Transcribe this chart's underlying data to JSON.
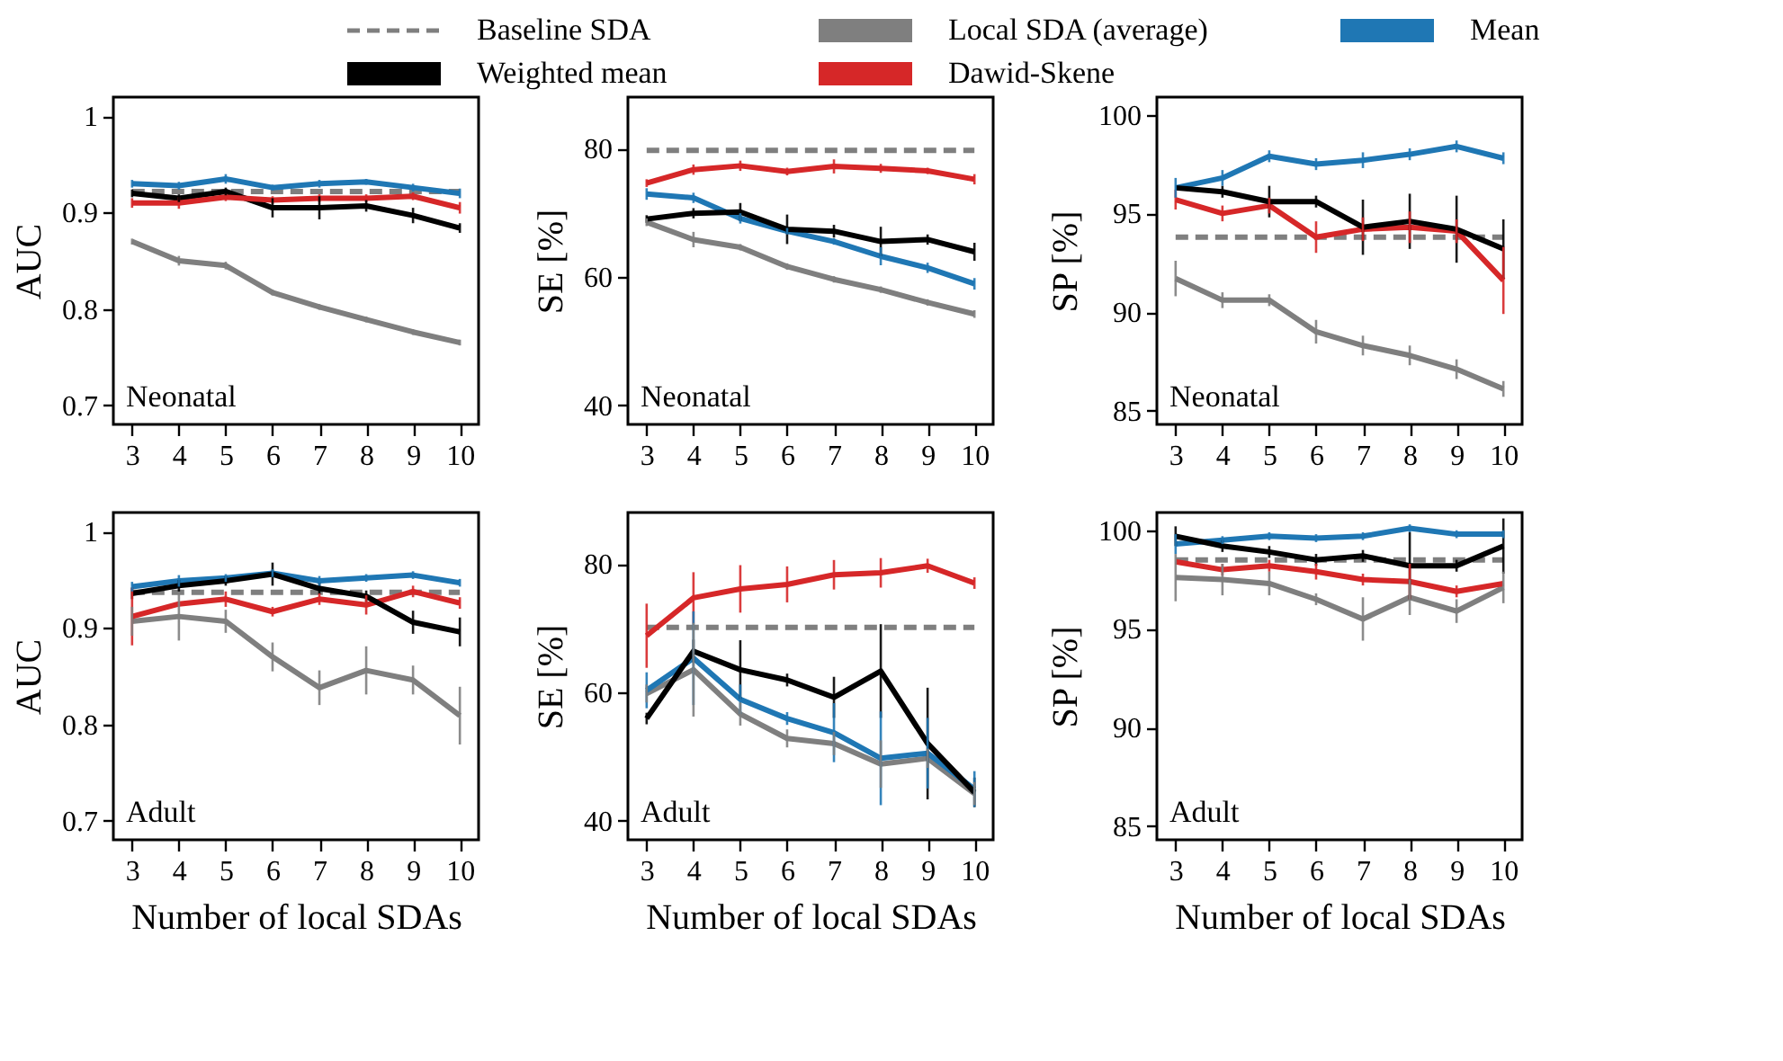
{
  "chart_data": [
    {
      "type": "line",
      "ylabel": "AUC",
      "annotations": [
        "Neonatal"
      ],
      "legend": "top",
      "grid": false,
      "x": [
        3,
        4,
        5,
        6,
        7,
        8,
        9,
        10
      ],
      "xlim": [
        2.6,
        10.4
      ],
      "xticks": [
        3,
        4,
        5,
        6,
        7,
        8,
        9,
        10
      ],
      "ylim": [
        0.68,
        1.02
      ],
      "yticks": [
        0.7,
        0.8,
        0.9,
        1
      ],
      "series": [
        {
          "name": "Baseline SDA",
          "color": "#7f7f7f",
          "line_style": "dashed",
          "values": [
            0.922,
            0.922,
            0.922,
            0.922,
            0.922,
            0.922,
            0.922,
            0.922
          ]
        },
        {
          "name": "Local SDA (average)",
          "color": "#7f7f7f",
          "values": [
            0.87,
            0.85,
            0.845,
            0.817,
            0.802,
            0.789,
            0.776,
            0.765
          ],
          "errors": [
            0.003,
            0.005,
            0.004,
            0.003,
            0.003,
            0.003,
            0.003,
            0.003
          ]
        },
        {
          "name": "Mean",
          "color": "#1f77b4",
          "values": [
            0.93,
            0.928,
            0.935,
            0.926,
            0.93,
            0.932,
            0.926,
            0.92
          ],
          "errors": [
            0.004,
            0.004,
            0.005,
            0.003,
            0.004,
            0.003,
            0.004,
            0.005
          ]
        },
        {
          "name": "Weighted mean",
          "color": "#000000",
          "values": [
            0.92,
            0.915,
            0.922,
            0.905,
            0.905,
            0.907,
            0.897,
            0.884
          ],
          "errors": [
            0.004,
            0.004,
            0.004,
            0.01,
            0.012,
            0.006,
            0.008,
            0.005
          ]
        },
        {
          "name": "Dawid-Skene",
          "color": "#d62728",
          "values": [
            0.91,
            0.91,
            0.916,
            0.913,
            0.915,
            0.915,
            0.917,
            0.905
          ],
          "errors": [
            0.005,
            0.006,
            0.004,
            0.004,
            0.004,
            0.004,
            0.004,
            0.006
          ]
        }
      ]
    },
    {
      "type": "line",
      "ylabel": "SE [%]",
      "annotations": [
        "Neonatal"
      ],
      "grid": false,
      "x": [
        3,
        4,
        5,
        6,
        7,
        8,
        9,
        10
      ],
      "xlim": [
        2.6,
        10.4
      ],
      "xticks": [
        3,
        4,
        5,
        6,
        7,
        8,
        9,
        10
      ],
      "ylim": [
        37,
        88
      ],
      "yticks": [
        40,
        60,
        80
      ],
      "series": [
        {
          "color": "#7f7f7f",
          "line_style": "dashed",
          "values": [
            79.7,
            79.7,
            79.7,
            79.7,
            79.7,
            79.7,
            79.7,
            79.7
          ]
        },
        {
          "color": "#7f7f7f",
          "values": [
            68.5,
            65.8,
            64.6,
            61.6,
            59.6,
            58,
            56,
            54.2
          ],
          "errors": [
            0.6,
            1.2,
            0.5,
            0.5,
            0.5,
            0.5,
            0.5,
            0.6
          ]
        },
        {
          "color": "#1f77b4",
          "values": [
            72.9,
            72.3,
            69.1,
            67.1,
            65.5,
            63.2,
            61.4,
            58.9
          ],
          "errors": [
            0.9,
            0.8,
            0.8,
            0.5,
            0.5,
            1.4,
            0.8,
            0.9
          ]
        },
        {
          "color": "#d62728",
          "values": [
            74.6,
            76.7,
            77.3,
            76.4,
            77.2,
            76.9,
            76.5,
            75.2
          ],
          "errors": [
            0.6,
            0.8,
            0.8,
            0.6,
            1.1,
            0.7,
            0.5,
            0.8
          ]
        },
        {
          "color": "#000000",
          "values": [
            69,
            69.9,
            70.1,
            67.4,
            67.1,
            65.5,
            65.8,
            63.9
          ],
          "errors": [
            0.6,
            0.8,
            1.4,
            2.3,
            1,
            2.3,
            0.8,
            1.4
          ]
        }
      ]
    },
    {
      "type": "line",
      "ylabel": "SP [%]",
      "annotations": [
        "Neonatal"
      ],
      "grid": false,
      "x": [
        3,
        4,
        5,
        6,
        7,
        8,
        9,
        10
      ],
      "xlim": [
        2.6,
        10.4
      ],
      "xticks": [
        3,
        4,
        5,
        6,
        7,
        8,
        9,
        10
      ],
      "ylim": [
        84.3,
        100.9
      ],
      "yticks": [
        85,
        90,
        95,
        100
      ],
      "series": [
        {
          "color": "#7f7f7f",
          "line_style": "dashed",
          "values": [
            93.8,
            93.8,
            93.8,
            93.8,
            93.8,
            93.8,
            93.8,
            93.8
          ]
        },
        {
          "color": "#7f7f7f",
          "values": [
            91.7,
            90.6,
            90.6,
            89,
            88.3,
            87.8,
            87.1,
            86.1
          ],
          "errors": [
            0.9,
            0.4,
            0.3,
            0.6,
            0.5,
            0.5,
            0.5,
            0.4
          ]
        },
        {
          "color": "#1f77b4",
          "values": [
            96.3,
            96.8,
            97.9,
            97.5,
            97.7,
            98,
            98.4,
            97.8
          ],
          "errors": [
            0.5,
            0.4,
            0.3,
            0.3,
            0.4,
            0.3,
            0.3,
            0.3
          ]
        },
        {
          "color": "#d62728",
          "values": [
            95.7,
            95,
            95.4,
            93.8,
            94.2,
            94.3,
            94.1,
            91.6
          ],
          "errors": [
            0.5,
            0.4,
            0.4,
            0.8,
            0.6,
            0.8,
            0.6,
            1.7
          ]
        },
        {
          "color": "#000000",
          "values": [
            96.3,
            96.1,
            95.6,
            95.6,
            94.3,
            94.6,
            94.2,
            93.2
          ],
          "errors": [
            null,
            0.3,
            0.8,
            0.3,
            1.4,
            1.4,
            1.7,
            1.5
          ]
        }
      ]
    },
    {
      "type": "line",
      "ylabel": "AUC",
      "xlabel": "Number of local SDAs",
      "annotations": [
        "Adult"
      ],
      "grid": false,
      "x": [
        3,
        4,
        5,
        6,
        7,
        8,
        9,
        10
      ],
      "xlim": [
        2.6,
        10.4
      ],
      "xticks": [
        3,
        4,
        5,
        6,
        7,
        8,
        9,
        10
      ],
      "ylim": [
        0.68,
        1.02
      ],
      "yticks": [
        0.7,
        0.8,
        0.9,
        1
      ],
      "series": [
        {
          "color": "#7f7f7f",
          "line_style": "dashed",
          "values": [
            0.937,
            0.937,
            0.937,
            0.937,
            0.937,
            0.937,
            0.937,
            0.937
          ]
        },
        {
          "color": "#7f7f7f",
          "values": [
            0.907,
            0.912,
            0.907,
            0.87,
            0.838,
            0.856,
            0.846,
            0.809
          ],
          "errors": [
            0.015,
            0.025,
            0.012,
            0.015,
            0.018,
            0.025,
            0.015,
            0.03
          ]
        },
        {
          "color": "#1f77b4",
          "values": [
            0.943,
            0.949,
            0.952,
            0.957,
            0.949,
            0.952,
            0.955,
            0.947
          ],
          "errors": [
            0.005,
            0.006,
            0.004,
            0.004,
            0.005,
            0.004,
            0.004,
            0.004
          ]
        },
        {
          "color": "#d62728",
          "values": [
            0.912,
            0.925,
            0.93,
            0.917,
            0.93,
            0.924,
            0.938,
            0.926
          ],
          "errors": [
            0.03,
            null,
            0.008,
            0.005,
            0.006,
            0.01,
            0.006,
            0.006
          ]
        },
        {
          "color": "#000000",
          "values": [
            0.936,
            0.944,
            0.949,
            0.956,
            0.941,
            0.933,
            0.906,
            0.896
          ],
          "errors": [
            0.006,
            0.006,
            0.005,
            0.012,
            0.006,
            0.006,
            0.012,
            0.015
          ]
        }
      ]
    },
    {
      "type": "line",
      "ylabel": "SE [%]",
      "xlabel": "Number of local SDAs",
      "annotations": [
        "Adult"
      ],
      "grid": false,
      "x": [
        3,
        4,
        5,
        6,
        7,
        8,
        9,
        10
      ],
      "xlim": [
        2.6,
        10.4
      ],
      "xticks": [
        3,
        4,
        5,
        6,
        7,
        8,
        9,
        10
      ],
      "ylim": [
        37,
        88
      ],
      "yticks": [
        40,
        60,
        80
      ],
      "series": [
        {
          "color": "#7f7f7f",
          "line_style": "dashed",
          "values": [
            70.1,
            70.1,
            70.1,
            70.1,
            70.1,
            70.1,
            70.1,
            70.1
          ]
        },
        {
          "color": "#7f7f7f",
          "values": [
            59.8,
            63.5,
            56.6,
            52.8,
            52,
            48.8,
            49.7,
            44.2
          ],
          "errors": [
            1.4,
            7.3,
            1.8,
            1.4,
            1.8,
            3.7,
            1.5,
            1.8
          ]
        },
        {
          "color": "#1f77b4",
          "values": [
            60.3,
            65.3,
            58.9,
            55.9,
            53.7,
            49.7,
            50.5,
            44.9
          ],
          "errors": [
            2.8,
            7.3,
            2.3,
            1,
            4.6,
            7.3,
            5.5,
            2.8
          ]
        },
        {
          "color": "#d62728",
          "values": [
            68.8,
            74.7,
            76.1,
            76.8,
            78.3,
            78.6,
            79.7,
            77
          ],
          "errors": [
            5,
            4,
            3.7,
            2.8,
            2.3,
            2.3,
            1.1,
            0.9
          ]
        },
        {
          "color": "#000000",
          "values": [
            55.9,
            66.4,
            63.5,
            61.9,
            59.2,
            63.3,
            52,
            44.4
          ],
          "errors": [
            0.9,
            1.8,
            4.6,
            1,
            3.2,
            7.3,
            8.7,
            2.3
          ]
        }
      ]
    },
    {
      "type": "line",
      "ylabel": "SP [%]",
      "xlabel": "Number of local SDAs",
      "annotations": [
        "Adult"
      ],
      "grid": false,
      "x": [
        3,
        4,
        5,
        6,
        7,
        8,
        9,
        10
      ],
      "xlim": [
        2.6,
        10.4
      ],
      "xticks": [
        3,
        4,
        5,
        6,
        7,
        8,
        9,
        10
      ],
      "ylim": [
        84.3,
        100.9
      ],
      "yticks": [
        85,
        90,
        95,
        100
      ],
      "series": [
        {
          "color": "#7f7f7f",
          "line_style": "dashed",
          "values": [
            98.5,
            98.5,
            98.5,
            98.5,
            98.5,
            98.5,
            98.5,
            98.5
          ]
        },
        {
          "color": "#7f7f7f",
          "values": [
            97.6,
            97.5,
            97.3,
            96.5,
            95.5,
            96.6,
            95.9,
            97.1
          ],
          "errors": [
            1.2,
            0.8,
            0.6,
            0.3,
            1.1,
            0.9,
            0.6,
            0.8
          ]
        },
        {
          "color": "#1f77b4",
          "values": [
            99.3,
            99.5,
            99.7,
            99.6,
            99.7,
            100.1,
            99.8,
            99.8
          ],
          "errors": [
            0.5,
            0.2,
            0.2,
            0.2,
            0.2,
            0.2,
            0.2,
            0.2
          ]
        },
        {
          "color": "#d62728",
          "values": [
            98.4,
            98,
            98.2,
            97.9,
            97.5,
            97.4,
            96.9,
            97.3
          ],
          "errors": [
            null,
            0.3,
            0.3,
            0.4,
            0.3,
            0.9,
            0.3,
            null
          ]
        },
        {
          "color": "#000000",
          "values": [
            99.7,
            99.2,
            98.9,
            98.5,
            98.7,
            98.2,
            98.2,
            99.2
          ],
          "errors": [
            0.5,
            0.3,
            0.3,
            0.3,
            0.3,
            1.7,
            0.3,
            1.4
          ]
        }
      ]
    }
  ]
}
